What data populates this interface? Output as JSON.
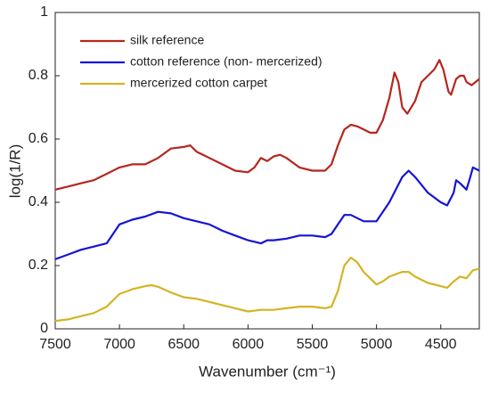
{
  "chart_data": {
    "type": "line",
    "xlabel": "Wavenumber (cm⁻¹)",
    "ylabel": "log(1/R)",
    "xlim": [
      7500,
      4200
    ],
    "xticks": [
      7500,
      7000,
      6500,
      6000,
      5500,
      5000,
      4500
    ],
    "ylim": [
      0,
      1
    ],
    "yticks": [
      0,
      0.2,
      0.4,
      0.6,
      0.8,
      1
    ],
    "legend": "upper left",
    "series": [
      {
        "name": "silk reference",
        "color": "#b5261e",
        "x": [
          7500,
          7400,
          7300,
          7200,
          7100,
          7000,
          6900,
          6800,
          6700,
          6600,
          6500,
          6450,
          6400,
          6350,
          6300,
          6200,
          6100,
          6000,
          5950,
          5900,
          5850,
          5800,
          5750,
          5700,
          5600,
          5500,
          5400,
          5350,
          5300,
          5250,
          5200,
          5150,
          5100,
          5050,
          5000,
          4950,
          4900,
          4860,
          4830,
          4800,
          4760,
          4700,
          4650,
          4600,
          4550,
          4510,
          4480,
          4440,
          4420,
          4380,
          4350,
          4320,
          4300,
          4260,
          4200
        ],
        "values": [
          0.44,
          0.45,
          0.46,
          0.47,
          0.49,
          0.51,
          0.52,
          0.52,
          0.54,
          0.57,
          0.575,
          0.58,
          0.56,
          0.55,
          0.54,
          0.52,
          0.5,
          0.495,
          0.51,
          0.54,
          0.53,
          0.545,
          0.55,
          0.54,
          0.51,
          0.5,
          0.5,
          0.52,
          0.58,
          0.63,
          0.645,
          0.64,
          0.63,
          0.62,
          0.62,
          0.66,
          0.73,
          0.81,
          0.78,
          0.7,
          0.68,
          0.72,
          0.78,
          0.8,
          0.82,
          0.85,
          0.82,
          0.75,
          0.74,
          0.79,
          0.8,
          0.8,
          0.78,
          0.77,
          0.79
        ]
      },
      {
        "name": "cotton reference (non- mercerized)",
        "color": "#1414d4",
        "x": [
          7500,
          7400,
          7300,
          7200,
          7100,
          7050,
          7000,
          6900,
          6800,
          6700,
          6600,
          6500,
          6400,
          6300,
          6200,
          6100,
          6000,
          5900,
          5850,
          5800,
          5700,
          5600,
          5500,
          5400,
          5350,
          5300,
          5250,
          5200,
          5100,
          5000,
          4900,
          4800,
          4750,
          4700,
          4600,
          4500,
          4450,
          4400,
          4380,
          4350,
          4300,
          4270,
          4250,
          4200
        ],
        "values": [
          0.22,
          0.235,
          0.25,
          0.26,
          0.27,
          0.3,
          0.33,
          0.345,
          0.355,
          0.37,
          0.365,
          0.35,
          0.34,
          0.33,
          0.31,
          0.295,
          0.28,
          0.27,
          0.28,
          0.28,
          0.285,
          0.295,
          0.295,
          0.29,
          0.3,
          0.33,
          0.36,
          0.36,
          0.34,
          0.34,
          0.4,
          0.48,
          0.5,
          0.48,
          0.43,
          0.4,
          0.39,
          0.43,
          0.47,
          0.46,
          0.44,
          0.48,
          0.51,
          0.5
        ]
      },
      {
        "name": "mercerized cotton carpet",
        "color": "#d4b424",
        "x": [
          7500,
          7400,
          7300,
          7200,
          7100,
          7000,
          6900,
          6800,
          6750,
          6700,
          6600,
          6500,
          6400,
          6300,
          6200,
          6100,
          6000,
          5900,
          5800,
          5700,
          5600,
          5500,
          5400,
          5350,
          5300,
          5250,
          5200,
          5150,
          5100,
          5050,
          5000,
          4950,
          4900,
          4800,
          4750,
          4700,
          4600,
          4500,
          4450,
          4400,
          4350,
          4300,
          4250,
          4200
        ],
        "values": [
          0.025,
          0.03,
          0.04,
          0.05,
          0.07,
          0.11,
          0.125,
          0.135,
          0.138,
          0.133,
          0.115,
          0.1,
          0.095,
          0.085,
          0.075,
          0.065,
          0.055,
          0.06,
          0.06,
          0.065,
          0.07,
          0.07,
          0.065,
          0.07,
          0.12,
          0.2,
          0.225,
          0.21,
          0.18,
          0.16,
          0.14,
          0.15,
          0.165,
          0.18,
          0.18,
          0.165,
          0.145,
          0.135,
          0.13,
          0.15,
          0.165,
          0.16,
          0.185,
          0.19
        ]
      }
    ]
  }
}
